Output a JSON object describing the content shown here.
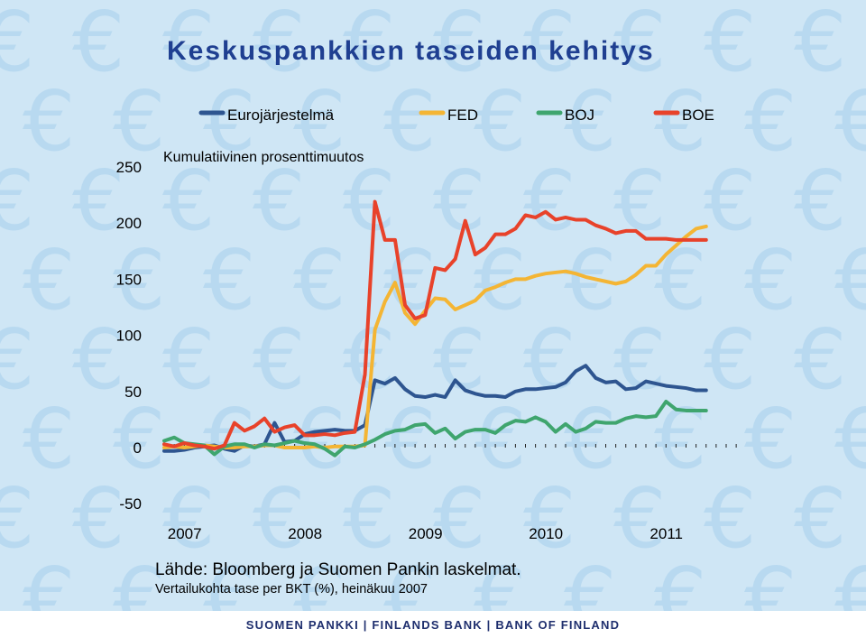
{
  "title": "Keskuspankkien taseiden kehitys",
  "source": "Lähde: Bloomberg ja Suomen Pankin laskelmat.",
  "note": "Vertailukohta tase per BKT (%), heinäkuu 2007",
  "footer": "SUOMEN PANKKI | FINLANDS BANK | BANK OF FINLAND",
  "colors": {
    "background": "#cfe6f5",
    "euro_watermark": "#b8d9f0",
    "title": "#1f3f91"
  },
  "icons": {
    "watermark": "euro-sign-icon"
  },
  "chart_data": {
    "type": "line",
    "subtitle": "Kumulatiivinen prosenttimuutos",
    "xlabel": "",
    "ylabel": "",
    "ylim": [
      -50,
      250
    ],
    "yticks": [
      250,
      200,
      150,
      100,
      50,
      0,
      -50
    ],
    "xticks": [
      "2007",
      "2008",
      "2009",
      "2010",
      "2011"
    ],
    "xlim": [
      2007.0,
      2011.75
    ],
    "legend_position": "top",
    "grid": false,
    "series": [
      {
        "name": "Eurojärjestelmä",
        "color": "#2e5590",
        "x": [
          2007.0,
          2007.083,
          2007.167,
          2007.25,
          2007.333,
          2007.417,
          2007.5,
          2007.583,
          2007.667,
          2007.75,
          2007.833,
          2007.917,
          2008.0,
          2008.083,
          2008.167,
          2008.25,
          2008.333,
          2008.417,
          2008.5,
          2008.583,
          2008.667,
          2008.75,
          2008.833,
          2008.917,
          2009.0,
          2009.083,
          2009.167,
          2009.25,
          2009.333,
          2009.417,
          2009.5,
          2009.583,
          2009.667,
          2009.75,
          2009.833,
          2009.917,
          2010.0,
          2010.083,
          2010.167,
          2010.25,
          2010.333,
          2010.417,
          2010.5,
          2010.583,
          2010.667,
          2010.75,
          2010.833,
          2010.917,
          2011.0,
          2011.083,
          2011.167,
          2011.25,
          2011.333,
          2011.417,
          2011.5
        ],
        "values": [
          -3,
          -3,
          -2,
          0,
          1,
          2,
          -1,
          -3,
          2,
          1,
          3,
          22,
          5,
          6,
          12,
          14,
          15,
          16,
          15,
          15,
          20,
          60,
          57,
          62,
          52,
          46,
          45,
          47,
          45,
          60,
          51,
          48,
          46,
          46,
          45,
          50,
          52,
          52,
          53,
          54,
          58,
          68,
          73,
          62,
          58,
          59,
          52,
          53,
          59,
          57,
          55,
          54,
          53,
          51,
          51
        ]
      },
      {
        "name": "FED",
        "color": "#f4b534",
        "x": [
          2007.0,
          2007.083,
          2007.167,
          2007.25,
          2007.333,
          2007.417,
          2007.5,
          2007.583,
          2007.667,
          2007.75,
          2007.833,
          2007.917,
          2008.0,
          2008.083,
          2008.167,
          2008.25,
          2008.333,
          2008.417,
          2008.5,
          2008.583,
          2008.667,
          2008.75,
          2008.833,
          2008.917,
          2009.0,
          2009.083,
          2009.167,
          2009.25,
          2009.333,
          2009.417,
          2009.5,
          2009.583,
          2009.667,
          2009.75,
          2009.833,
          2009.917,
          2010.0,
          2010.083,
          2010.167,
          2010.25,
          2010.333,
          2010.417,
          2010.5,
          2010.583,
          2010.667,
          2010.75,
          2010.833,
          2010.917,
          2011.0,
          2011.083,
          2011.167,
          2011.25,
          2011.333,
          2011.417,
          2011.5
        ],
        "values": [
          0,
          1,
          0,
          1,
          2,
          1,
          0,
          0,
          1,
          1,
          2,
          2,
          0,
          0,
          0,
          1,
          0,
          1,
          1,
          1,
          2,
          105,
          130,
          147,
          120,
          110,
          122,
          133,
          132,
          123,
          127,
          131,
          140,
          143,
          147,
          150,
          150,
          153,
          155,
          156,
          157,
          155,
          152,
          150,
          148,
          146,
          148,
          154,
          162,
          162,
          172,
          180,
          188,
          195,
          197
        ]
      },
      {
        "name": "BOJ",
        "color": "#3fa56e",
        "x": [
          2007.0,
          2007.083,
          2007.167,
          2007.25,
          2007.333,
          2007.417,
          2007.5,
          2007.583,
          2007.667,
          2007.75,
          2007.833,
          2007.917,
          2008.0,
          2008.083,
          2008.167,
          2008.25,
          2008.333,
          2008.417,
          2008.5,
          2008.583,
          2008.667,
          2008.75,
          2008.833,
          2008.917,
          2009.0,
          2009.083,
          2009.167,
          2009.25,
          2009.333,
          2009.417,
          2009.5,
          2009.583,
          2009.667,
          2009.75,
          2009.833,
          2009.917,
          2010.0,
          2010.083,
          2010.167,
          2010.25,
          2010.333,
          2010.417,
          2010.5,
          2010.583,
          2010.667,
          2010.75,
          2010.833,
          2010.917,
          2011.0,
          2011.083,
          2011.167,
          2011.25,
          2011.333,
          2011.417,
          2011.5
        ],
        "values": [
          6,
          9,
          4,
          3,
          2,
          -6,
          1,
          3,
          3,
          0,
          3,
          2,
          4,
          6,
          4,
          3,
          -1,
          -7,
          1,
          0,
          3,
          7,
          12,
          15,
          16,
          20,
          21,
          13,
          17,
          8,
          14,
          16,
          16,
          13,
          20,
          24,
          23,
          27,
          23,
          14,
          21,
          14,
          17,
          23,
          22,
          22,
          26,
          28,
          27,
          28,
          41,
          34,
          33,
          33,
          33
        ]
      },
      {
        "name": "BOE",
        "color": "#e8422a",
        "x": [
          2007.0,
          2007.083,
          2007.167,
          2007.25,
          2007.333,
          2007.417,
          2007.5,
          2007.583,
          2007.667,
          2007.75,
          2007.833,
          2007.917,
          2008.0,
          2008.083,
          2008.167,
          2008.25,
          2008.333,
          2008.417,
          2008.5,
          2008.583,
          2008.667,
          2008.75,
          2008.833,
          2008.917,
          2009.0,
          2009.083,
          2009.167,
          2009.25,
          2009.333,
          2009.417,
          2009.5,
          2009.583,
          2009.667,
          2009.75,
          2009.833,
          2009.917,
          2010.0,
          2010.083,
          2010.167,
          2010.25,
          2010.333,
          2010.417,
          2010.5,
          2010.583,
          2010.667,
          2010.75,
          2010.833,
          2010.917,
          2011.0,
          2011.083,
          2011.167,
          2011.25,
          2011.333,
          2011.417,
          2011.5
        ],
        "values": [
          3,
          1,
          4,
          2,
          1,
          -1,
          2,
          22,
          15,
          19,
          26,
          14,
          18,
          20,
          11,
          11,
          12,
          11,
          13,
          14,
          65,
          219,
          185,
          185,
          127,
          115,
          118,
          160,
          158,
          168,
          202,
          172,
          178,
          190,
          190,
          195,
          207,
          205,
          210,
          203,
          205,
          203,
          203,
          198,
          195,
          191,
          193,
          193,
          186,
          186,
          186,
          185,
          185,
          185,
          185
        ]
      }
    ]
  }
}
